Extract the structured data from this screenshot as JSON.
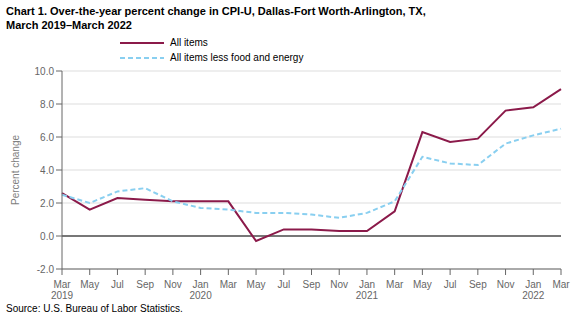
{
  "chart_data": {
    "type": "line",
    "title": "Chart 1. Over-the-year percent change in CPI-U, Dallas-Fort Worth-Arlington, TX,\nMarch 2019–March 2022",
    "y_label": "Percent change",
    "source": "Source: U.S. Bureau of Labor Statistics.",
    "categories": [
      "Mar\n2019",
      "May",
      "Jul",
      "Sep",
      "Nov",
      "Jan\n2020",
      "Mar",
      "May",
      "Jul",
      "Sep",
      "Nov",
      "Jan\n2021",
      "Mar",
      "May",
      "Jul",
      "Sep",
      "Nov",
      "Jan\n2022",
      "Mar"
    ],
    "series": [
      {
        "name": "All items",
        "color": "#8B1A4A",
        "line_style": "solid",
        "values": [
          2.6,
          1.6,
          2.3,
          2.2,
          2.1,
          2.1,
          2.1,
          -0.3,
          0.4,
          0.4,
          0.3,
          0.3,
          1.5,
          6.3,
          5.7,
          5.9,
          7.6,
          7.8,
          8.9
        ]
      },
      {
        "name": "All items less food and energy",
        "color": "#89CFF0",
        "line_style": "dashed",
        "values": [
          2.5,
          2.0,
          2.7,
          2.9,
          2.1,
          1.7,
          1.6,
          1.4,
          1.4,
          1.3,
          1.1,
          1.4,
          2.1,
          4.8,
          4.4,
          4.3,
          5.6,
          6.1,
          6.5
        ]
      }
    ],
    "ylim": [
      -2.0,
      10.0
    ],
    "yticks": [
      {
        "value": -2.0,
        "label": "-2.0"
      },
      {
        "value": 0.0,
        "label": "0.0"
      },
      {
        "value": 2.0,
        "label": "2.0"
      },
      {
        "value": 4.0,
        "label": "4.0"
      },
      {
        "value": 6.0,
        "label": "6.0"
      },
      {
        "value": 8.0,
        "label": "8.0"
      },
      {
        "value": 10.0,
        "label": "10.0"
      }
    ],
    "grid": true,
    "legend": "top"
  }
}
